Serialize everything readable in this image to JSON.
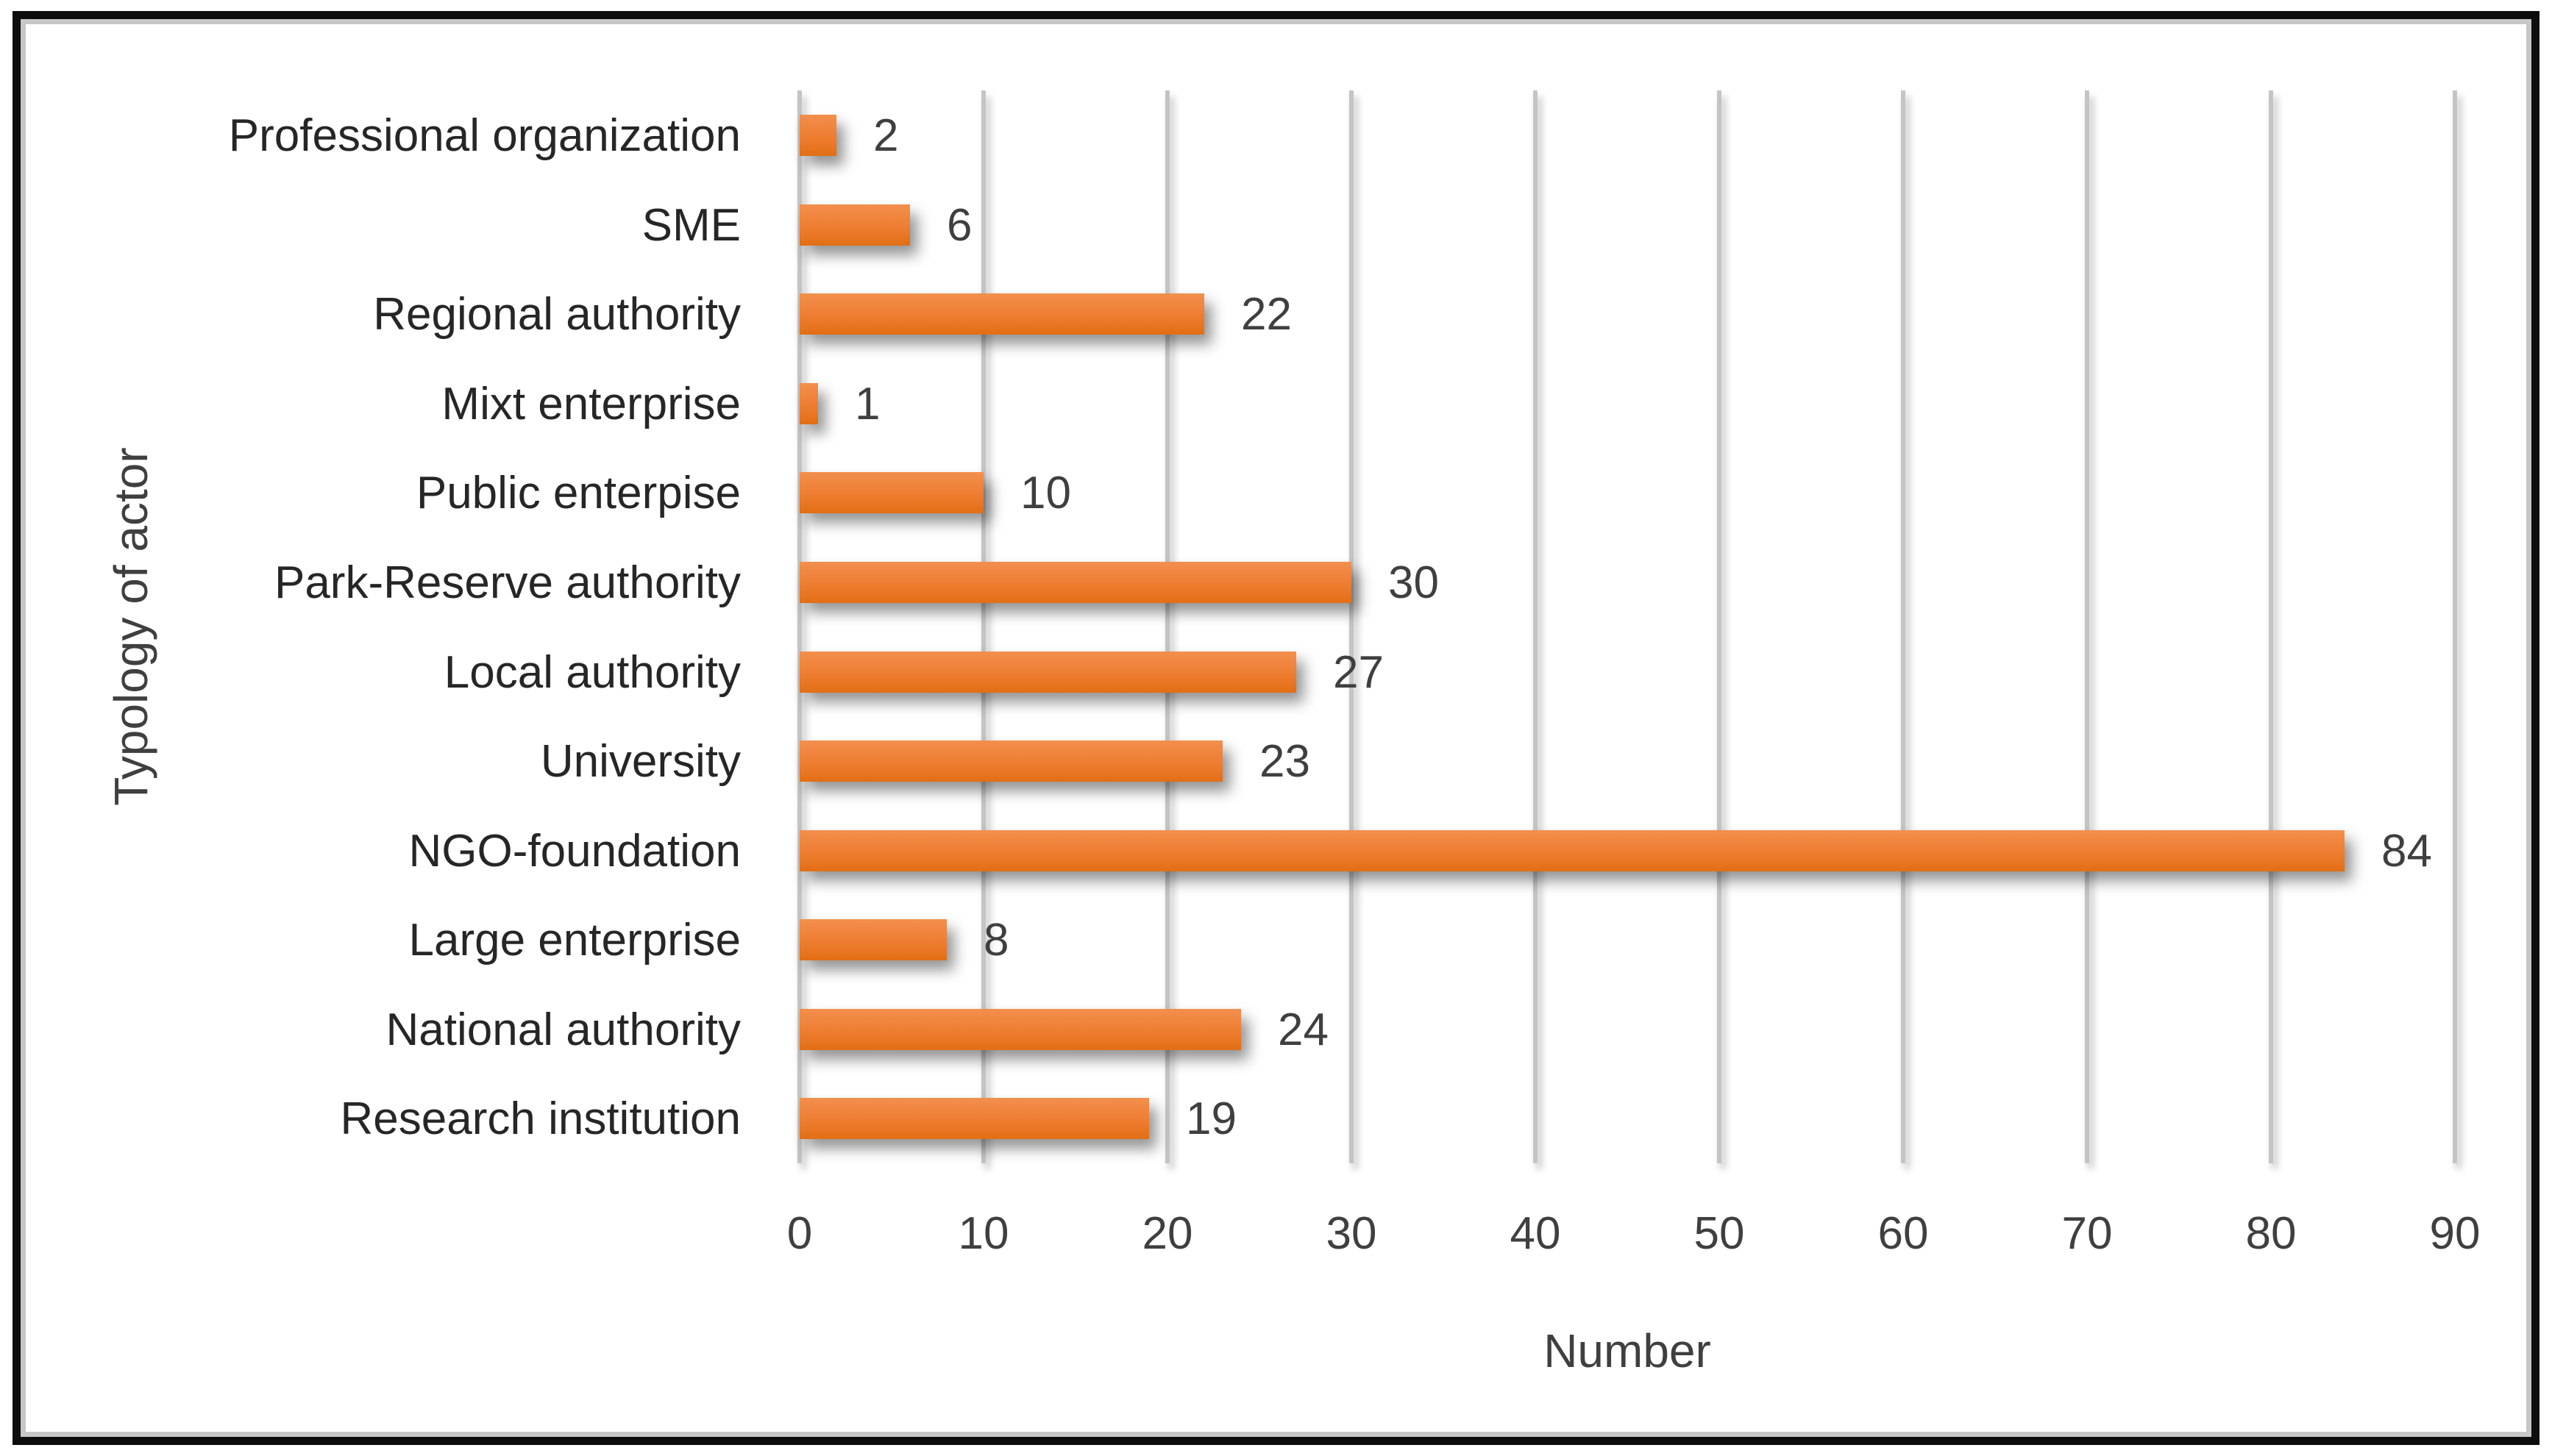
{
  "chart_data": {
    "type": "bar",
    "orientation": "horizontal",
    "title": "",
    "categories": [
      "Professional organization",
      "SME",
      "Regional authority",
      "Mixt enterprise",
      "Public enterpise",
      "Park-Reserve authority",
      "Local authority",
      "University",
      "NGO-foundation",
      "Large enterprise",
      "National authority",
      "Research institution"
    ],
    "values": [
      2,
      6,
      22,
      1,
      10,
      30,
      27,
      23,
      84,
      8,
      24,
      19
    ],
    "data_labels": [
      "2",
      "6",
      "22",
      "1",
      "10",
      "30",
      "27",
      "23",
      "84",
      "8",
      "24",
      "19"
    ],
    "xlabel": "Number",
    "ylabel": "Typology of actor",
    "xlim": [
      0,
      90
    ],
    "xticks": [
      "0",
      "10",
      "20",
      "30",
      "40",
      "50",
      "60",
      "70",
      "80",
      "90"
    ],
    "grid": true,
    "legend": "none",
    "colors": {
      "bar_top": "#f28f4d",
      "bar_mid": "#ee7d31",
      "bar_bottom": "#e26e14",
      "gridline": "#c4c4c4",
      "text": "#3f3f3f",
      "frame_border": "#0d0d0d",
      "chart_border": "#c7c7c7",
      "background": "#ffffff"
    }
  }
}
